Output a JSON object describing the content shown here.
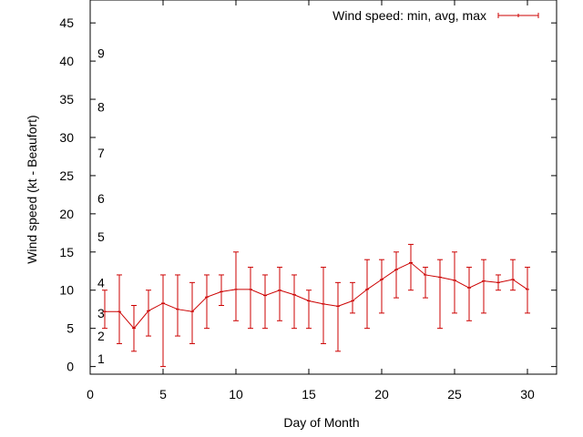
{
  "chart_data": {
    "type": "line",
    "title": "",
    "xlabel": "Day of Month",
    "ylabel": "Wind speed (kt - Beaufort)",
    "xlim": [
      0,
      32
    ],
    "ylim": [
      -1,
      48
    ],
    "x_ticks": [
      "0",
      "5",
      "10",
      "15",
      "20",
      "25",
      "30"
    ],
    "y_ticks": [
      "0",
      "5",
      "10",
      "15",
      "20",
      "25",
      "30",
      "35",
      "40",
      "45"
    ],
    "beaufort_labels": [
      {
        "label": "1",
        "y": 1
      },
      {
        "label": "2",
        "y": 4
      },
      {
        "label": "3",
        "y": 7
      },
      {
        "label": "4",
        "y": 11
      },
      {
        "label": "5",
        "y": 17
      },
      {
        "label": "6",
        "y": 22
      },
      {
        "label": "7",
        "y": 28
      },
      {
        "label": "8",
        "y": 34
      },
      {
        "label": "9",
        "y": 41
      }
    ],
    "legend": {
      "position": "top-right"
    },
    "grid": false,
    "series": [
      {
        "name": "Wind speed: min, avg, max",
        "color": "#cc0000",
        "x": [
          1,
          2,
          3,
          4,
          5,
          6,
          7,
          8,
          9,
          10,
          11,
          12,
          13,
          14,
          15,
          16,
          17,
          18,
          19,
          20,
          21,
          22,
          23,
          24,
          25,
          26,
          27,
          28,
          29,
          30
        ],
        "avg": [
          7.2,
          7.2,
          5.0,
          7.3,
          8.3,
          7.5,
          7.2,
          9.1,
          9.8,
          10.1,
          10.1,
          9.3,
          10.0,
          9.4,
          8.6,
          8.2,
          7.9,
          8.6,
          10.1,
          11.4,
          12.7,
          13.6,
          12.0,
          11.7,
          11.3,
          10.3,
          11.2,
          11.0,
          11.4,
          10.1
        ],
        "min": [
          5,
          3,
          2,
          4,
          0,
          4,
          3,
          5,
          8,
          6,
          5,
          5,
          6,
          5,
          5,
          3,
          2,
          7,
          5,
          7,
          9,
          10,
          9,
          5,
          7,
          6,
          7,
          10,
          10,
          7
        ],
        "max": [
          10,
          12,
          8,
          10,
          12,
          12,
          11,
          12,
          12,
          15,
          13,
          12,
          13,
          12,
          10,
          13,
          11,
          11,
          14,
          14,
          15,
          16,
          13,
          14,
          15,
          13,
          14,
          12,
          14,
          13
        ]
      }
    ]
  }
}
